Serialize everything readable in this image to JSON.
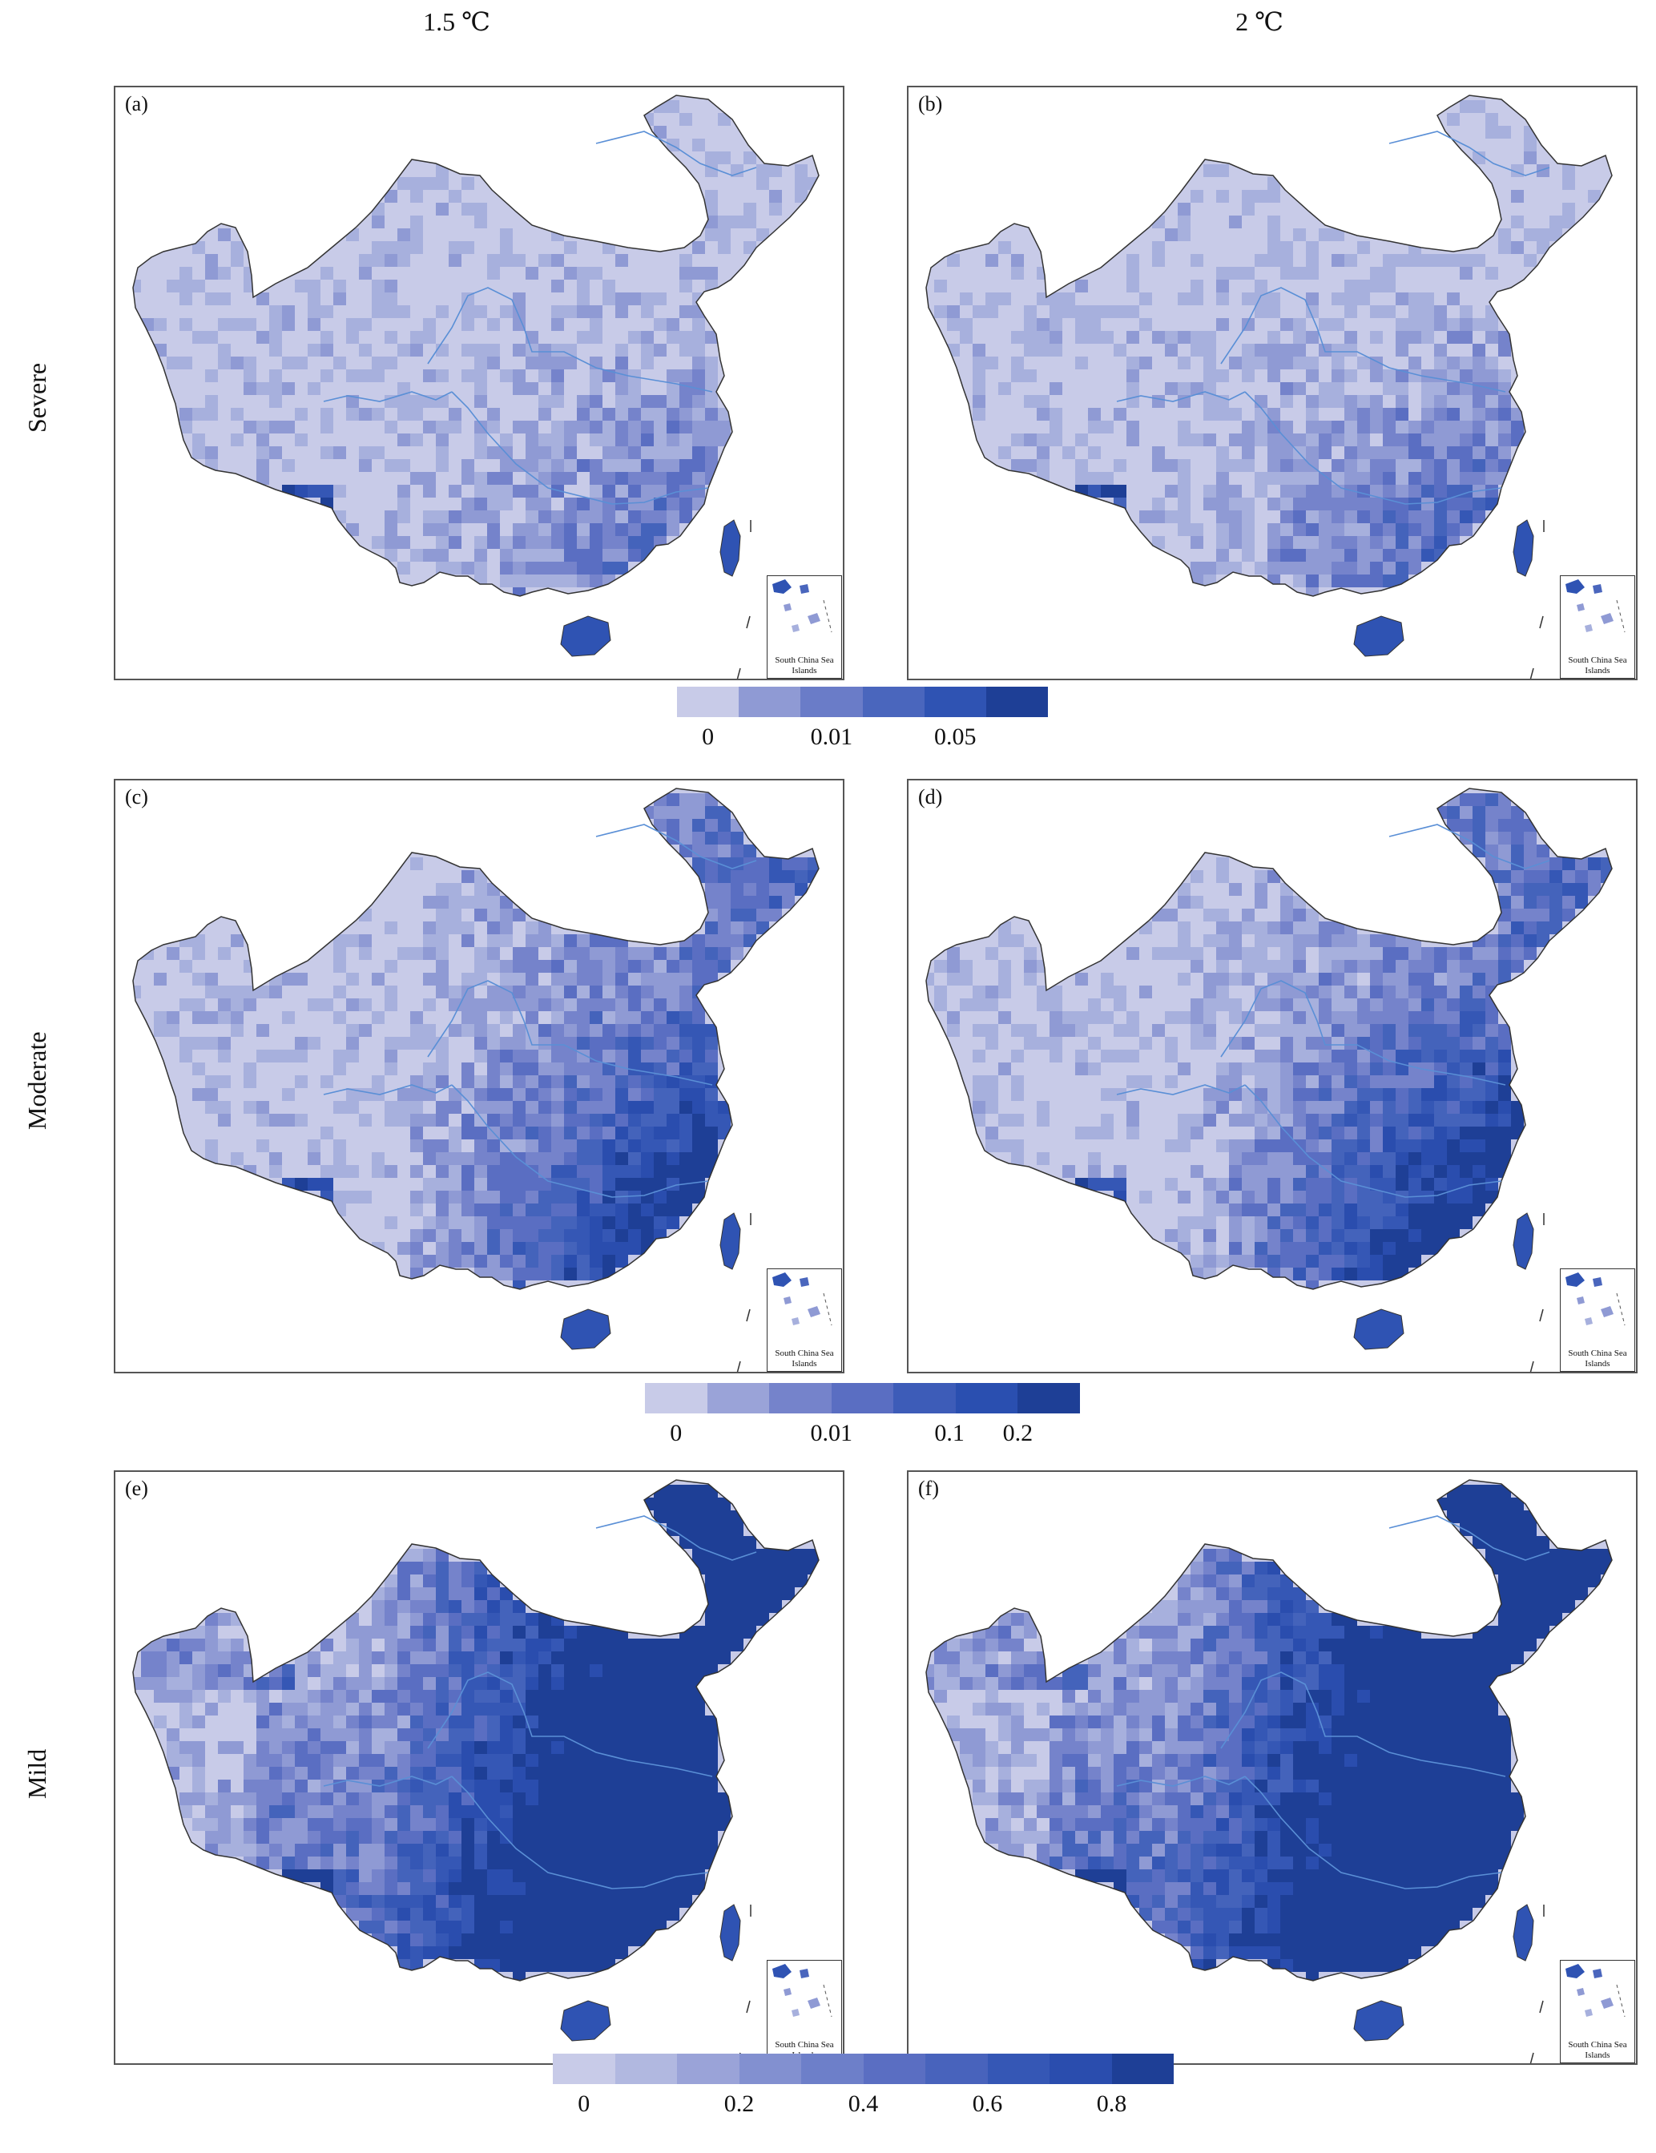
{
  "columns": [
    "1.5 ℃",
    "2 ℃"
  ],
  "rows": [
    "Severe",
    "Moderate",
    "Mild"
  ],
  "panels": [
    {
      "label": "(a)",
      "row": 0,
      "col": 0,
      "intensity": 0.28
    },
    {
      "label": "(b)",
      "row": 0,
      "col": 1,
      "intensity": 0.34
    },
    {
      "label": "(c)",
      "row": 1,
      "col": 0,
      "intensity": 0.55
    },
    {
      "label": "(d)",
      "row": 1,
      "col": 1,
      "intensity": 0.6
    },
    {
      "label": "(e)",
      "row": 2,
      "col": 0,
      "intensity": 0.85
    },
    {
      "label": "(f)",
      "row": 2,
      "col": 1,
      "intensity": 0.88
    }
  ],
  "inset": {
    "label": "South China Sea Islands"
  },
  "legends": [
    {
      "name": "severe",
      "colors": [
        "#c8cbe8",
        "#8f9ad4",
        "#6a7cc8",
        "#4a66bd",
        "#2f53b3",
        "#1e3f96"
      ],
      "ticks": [
        {
          "text": "0",
          "at": 0.5
        },
        {
          "text": "0.01",
          "at": 2.5
        },
        {
          "text": "0.05",
          "at": 4.5
        }
      ]
    },
    {
      "name": "moderate",
      "colors": [
        "#c8cbe8",
        "#9aa3d8",
        "#7583cb",
        "#5a6ec2",
        "#3d5cb8",
        "#2a4fb0",
        "#1e3f96"
      ],
      "ticks": [
        {
          "text": "0",
          "at": 0.5
        },
        {
          "text": "0.01",
          "at": 3.0
        },
        {
          "text": "0.1",
          "at": 4.9
        },
        {
          "text": "0.2",
          "at": 6.0
        }
      ]
    },
    {
      "name": "mild",
      "colors": [
        "#c8cbe8",
        "#b1b8e0",
        "#9aa3d8",
        "#8290d0",
        "#6d7fc9",
        "#5a6ec2",
        "#4863bc",
        "#3557b5",
        "#2a4dae",
        "#1e3f96"
      ],
      "ticks": [
        {
          "text": "0",
          "at": 0.5
        },
        {
          "text": "0.2",
          "at": 3.0
        },
        {
          "text": "0.4",
          "at": 5.0
        },
        {
          "text": "0.6",
          "at": 7.0
        },
        {
          "text": "0.8",
          "at": 9.0
        }
      ]
    }
  ]
}
